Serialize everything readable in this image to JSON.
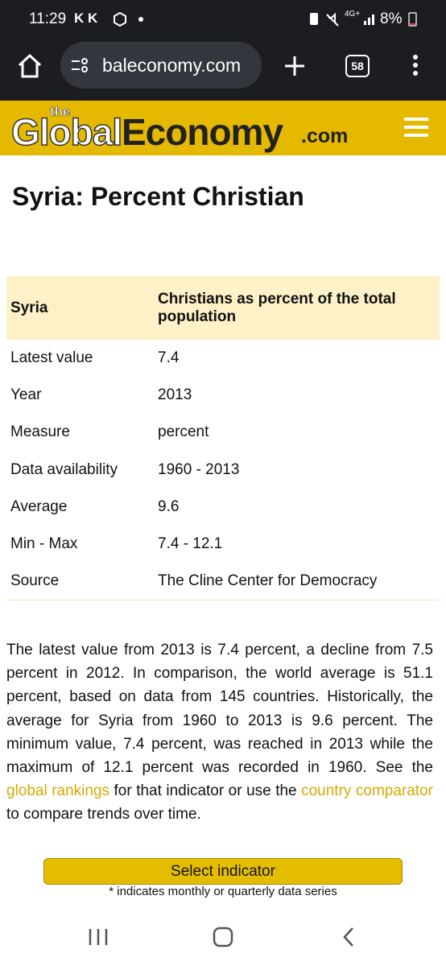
{
  "status_bar": {
    "time": "11:29",
    "apps": "K K",
    "network": "4G+",
    "battery": "8%"
  },
  "browser": {
    "url": "baleconomy.com",
    "tabs": "58"
  },
  "logo": {
    "the": "the",
    "global": "Global",
    "economy": "Economy",
    "com": ".com"
  },
  "title": "Syria: Percent Christian",
  "table": {
    "header": [
      "Syria",
      "Christians as percent of the total population"
    ],
    "rows": [
      [
        "Latest value",
        "7.4"
      ],
      [
        "Year",
        "2013"
      ],
      [
        "Measure",
        "percent"
      ],
      [
        "Data availability",
        "1960 - 2013"
      ],
      [
        "Average",
        "9.6"
      ],
      [
        "Min - Max",
        "7.4 - 12.1"
      ],
      [
        "Source",
        "The Cline Center for Democracy"
      ]
    ]
  },
  "paragraph": [
    "The latest value from 2013 is 7.4 percent, a decline from 7.5 percent in 2012. In comparison, the world average is 51.1 percent, based on data from 145 countries. Historically, the average for Syria from 1960 to 2013 is 9.6 percent. The minimum value, 7.4 percent, was reached in 2013 while the maximum of 12.1 percent was recorded in 1960. See the ",
    "global rankings",
    " for that indicator or use the ",
    "country comparator",
    " to compare trends over time."
  ],
  "button": "Select indicator",
  "note": "* indicates monthly or quarterly data series"
}
